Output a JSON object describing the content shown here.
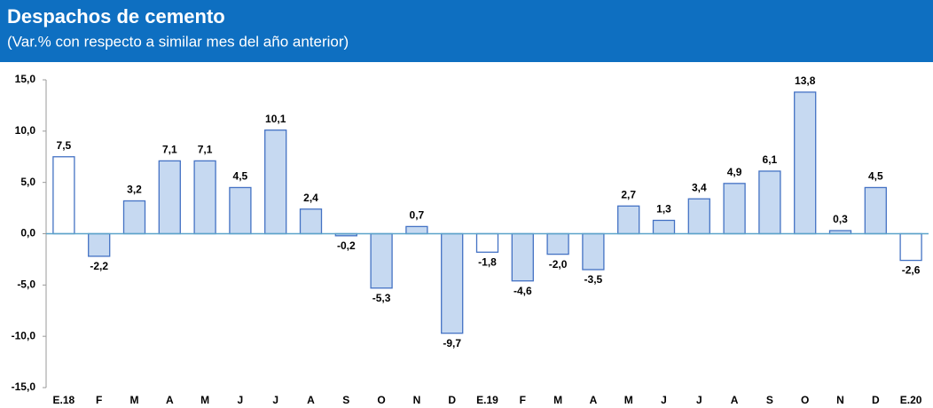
{
  "chart_data": {
    "type": "bar",
    "title": "Despachos de cemento",
    "subtitle": "(Var.% con respecto a similar mes del año anterior)",
    "categories": [
      "E.18",
      "F",
      "M",
      "A",
      "M",
      "J",
      "J",
      "A",
      "S",
      "O",
      "N",
      "D",
      "E.19",
      "F",
      "M",
      "A",
      "M",
      "J",
      "J",
      "A",
      "S",
      "O",
      "N",
      "D",
      "E.20"
    ],
    "values": [
      7.5,
      -2.2,
      3.2,
      7.1,
      7.1,
      4.5,
      10.1,
      2.4,
      -0.2,
      -5.3,
      0.7,
      -9.7,
      -1.8,
      -4.6,
      -2.0,
      -3.5,
      2.7,
      1.3,
      3.4,
      4.9,
      6.1,
      13.8,
      0.3,
      4.5,
      -2.6
    ],
    "value_labels": [
      "7,5",
      "-2,2",
      "3,2",
      "7,1",
      "7,1",
      "4,5",
      "10,1",
      "2,4",
      "-0,2",
      "-5,3",
      "0,7",
      "-9,7",
      "-1,8",
      "-4,6",
      "-2,0",
      "-3,5",
      "2,7",
      "1,3",
      "3,4",
      "4,9",
      "6,1",
      "13,8",
      "0,3",
      "4,5",
      "-2,6"
    ],
    "colors": [
      "#ffffff",
      "#c6d9f1",
      "#c6d9f1",
      "#c6d9f1",
      "#c6d9f1",
      "#c6d9f1",
      "#c6d9f1",
      "#c6d9f1",
      "#c6d9f1",
      "#c6d9f1",
      "#c6d9f1",
      "#c6d9f1",
      "#ffffff",
      "#c6d9f1",
      "#c6d9f1",
      "#c6d9f1",
      "#c6d9f1",
      "#c6d9f1",
      "#c6d9f1",
      "#c6d9f1",
      "#c6d9f1",
      "#c6d9f1",
      "#c6d9f1",
      "#c6d9f1",
      "#ffffff"
    ],
    "edge_color": "#4472c4",
    "ylim": [
      -15,
      15
    ],
    "yticks": [
      {
        "value": -15,
        "label": "-15,0"
      },
      {
        "value": -10,
        "label": "-10,0"
      },
      {
        "value": -5,
        "label": "-5,0"
      },
      {
        "value": 0,
        "label": "0,0"
      },
      {
        "value": 5,
        "label": "5,0"
      },
      {
        "value": 10,
        "label": "10,0"
      },
      {
        "value": 15,
        "label": "15,0"
      }
    ],
    "grid": false
  }
}
